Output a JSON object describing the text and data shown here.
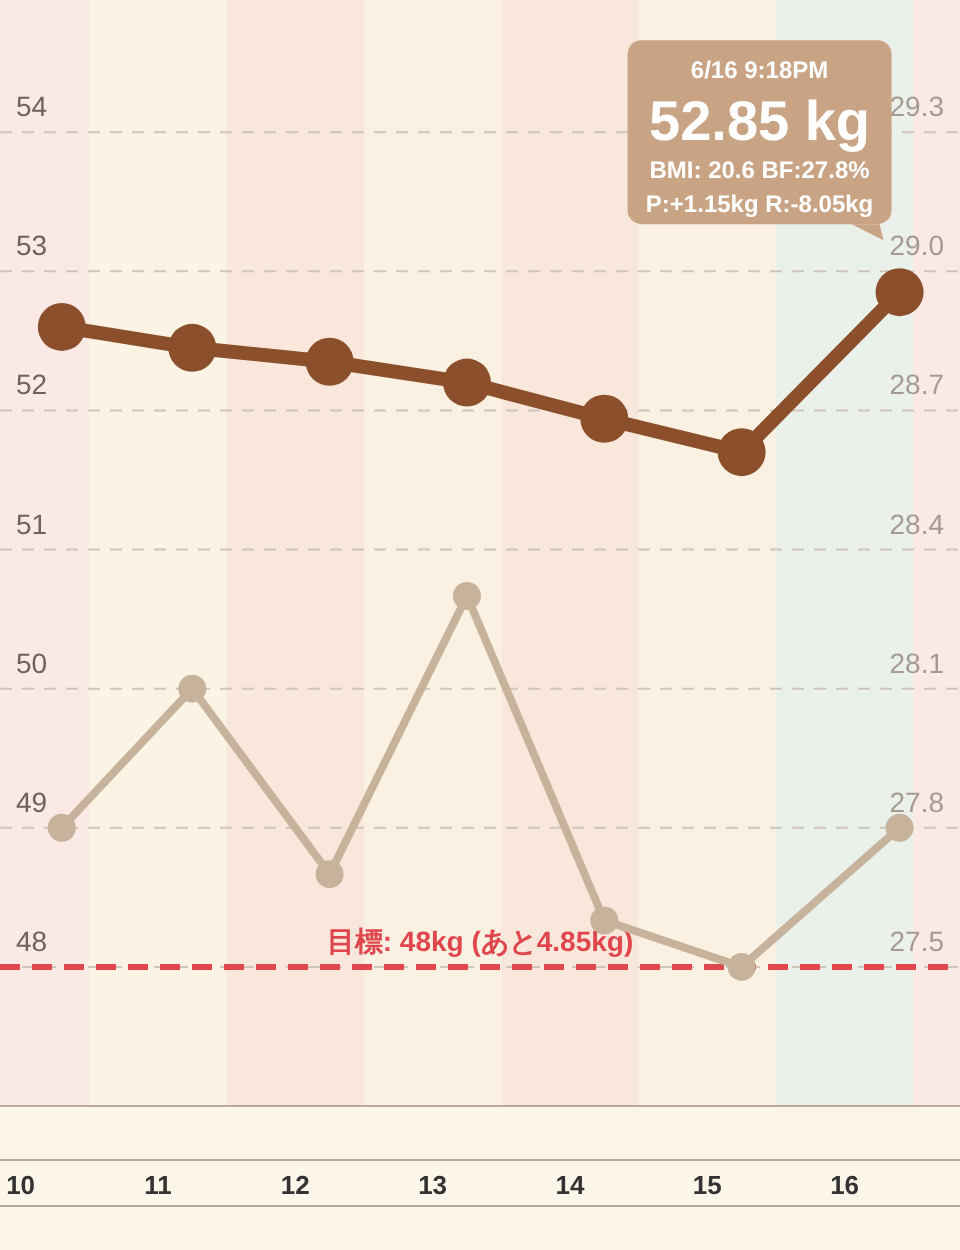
{
  "chart_data": {
    "type": "line",
    "x": [
      10.3,
      11.25,
      12.25,
      13.25,
      14.25,
      15.25,
      16.4
    ],
    "xlim": [
      9.85,
      16.84
    ],
    "xticks": [
      10,
      11,
      12,
      13,
      14,
      15,
      16
    ],
    "ylim": [
      47,
      54.95
    ],
    "yticks": [
      48,
      49,
      50,
      51,
      52,
      53,
      54
    ],
    "y2lim": [
      27.2,
      29.585
    ],
    "y2ticks": [
      27.5,
      27.8,
      28.1,
      28.4,
      28.7,
      {
        "value": 29.0,
        "label": "29.0"
      },
      29.3
    ],
    "series": [
      {
        "color": "#8b4f2b",
        "values": [
          52.6,
          52.45,
          52.35,
          52.2,
          51.94,
          51.7,
          52.85
        ]
      },
      {
        "color": "#c7b39c",
        "axis": "y2",
        "values": [
          27.8,
          28.1,
          27.7,
          28.3,
          27.6,
          27.5,
          27.8
        ]
      }
    ],
    "grid": "y",
    "marker": "circle",
    "line_style": "solid",
    "ref_lines": [
      {
        "axis": "y",
        "value": 48,
        "label": "目標: 48kg (あと4.85kg)",
        "color": "#e0474c",
        "line_style": "dashed"
      }
    ],
    "bands": [
      {
        "axis": "x",
        "from": 9.85,
        "to": 10.5,
        "color": "#fbe9e6"
      },
      {
        "axis": "x",
        "from": 10.5,
        "to": 11.5,
        "color": "#fbf3e4"
      },
      {
        "axis": "x",
        "from": 11.5,
        "to": 12.5,
        "color": "#f9e7db"
      },
      {
        "axis": "x",
        "from": 12.5,
        "to": 13.5,
        "color": "#fbf1e3"
      },
      {
        "axis": "x",
        "from": 13.5,
        "to": 14.5,
        "color": "#f9e7db"
      },
      {
        "axis": "x",
        "from": 14.5,
        "to": 15.5,
        "color": "#fbf1e3"
      },
      {
        "axis": "x",
        "from": 15.5,
        "to": 16.5,
        "color": "#eaf1eb"
      },
      {
        "axis": "x",
        "from": 16.5,
        "to": 16.84,
        "color": "#fbe9e6"
      }
    ],
    "annotations": [
      {
        "text": "6/16 9:18PM\n52.85 kg\nBMI: 20.6  BF:27.8%\nP:+1.15kg R:-8.05kg",
        "x": 16.4,
        "y": 52.85
      }
    ]
  }
}
